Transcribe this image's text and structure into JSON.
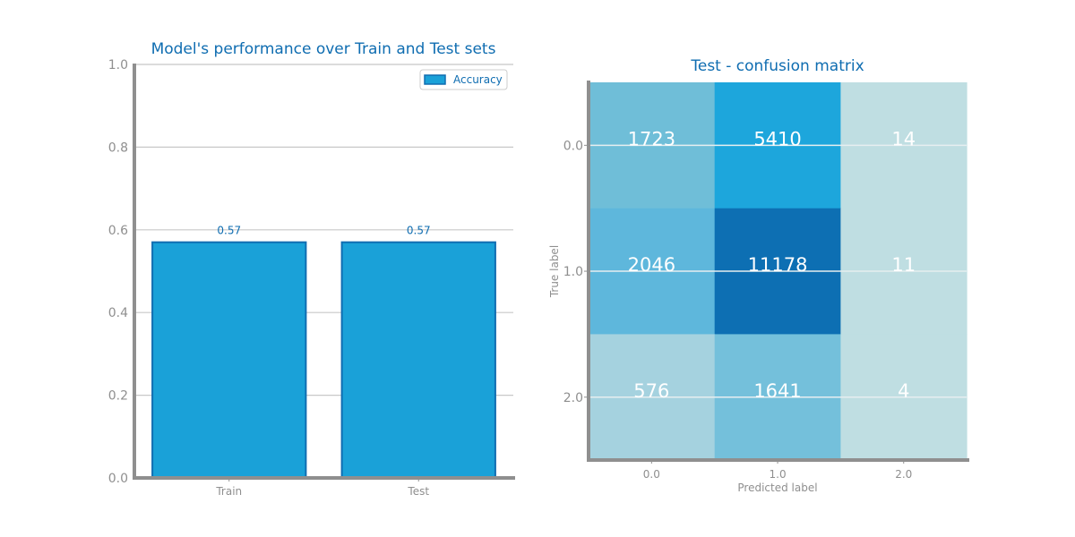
{
  "colors": {
    "accent": "#0f6db1",
    "bar_fill": "#1aa1d8",
    "bar_edge": "#0f6db1",
    "axis": "#8f8f8f",
    "grid": "#c8c8c8",
    "tick_text": "#8f8f8f",
    "title": "#0f6db1",
    "cell_text": "#ffffff"
  },
  "chart_data": [
    {
      "type": "bar",
      "title": "Model's performance over Train and Test sets",
      "categories": [
        "Train",
        "Test"
      ],
      "series": [
        {
          "name": "Accuracy",
          "values": [
            0.57,
            0.57
          ]
        }
      ],
      "data_labels": [
        "0.57",
        "0.57"
      ],
      "ylim": [
        0,
        1
      ],
      "yticks": [
        "0.0",
        "0.2",
        "0.4",
        "0.6",
        "0.8",
        "1.0"
      ],
      "grid": true,
      "legend": "top-right"
    },
    {
      "type": "heatmap",
      "title": "Test - confusion matrix",
      "xlabel": "Predicted label",
      "ylabel": "True label",
      "x_categories": [
        "0.0",
        "1.0",
        "2.0"
      ],
      "y_categories": [
        "0.0",
        "1.0",
        "2.0"
      ],
      "values": [
        [
          1723,
          5410,
          14
        ],
        [
          2046,
          11178,
          11
        ],
        [
          576,
          1641,
          4
        ]
      ],
      "cell_colors": [
        [
          "#6fbed8",
          "#1da6dc",
          "#bfdee2"
        ],
        [
          "#5eb7dc",
          "#0d6fb3",
          "#bfdee2"
        ],
        [
          "#a5d2df",
          "#74c0db",
          "#bfdee2"
        ]
      ]
    }
  ]
}
